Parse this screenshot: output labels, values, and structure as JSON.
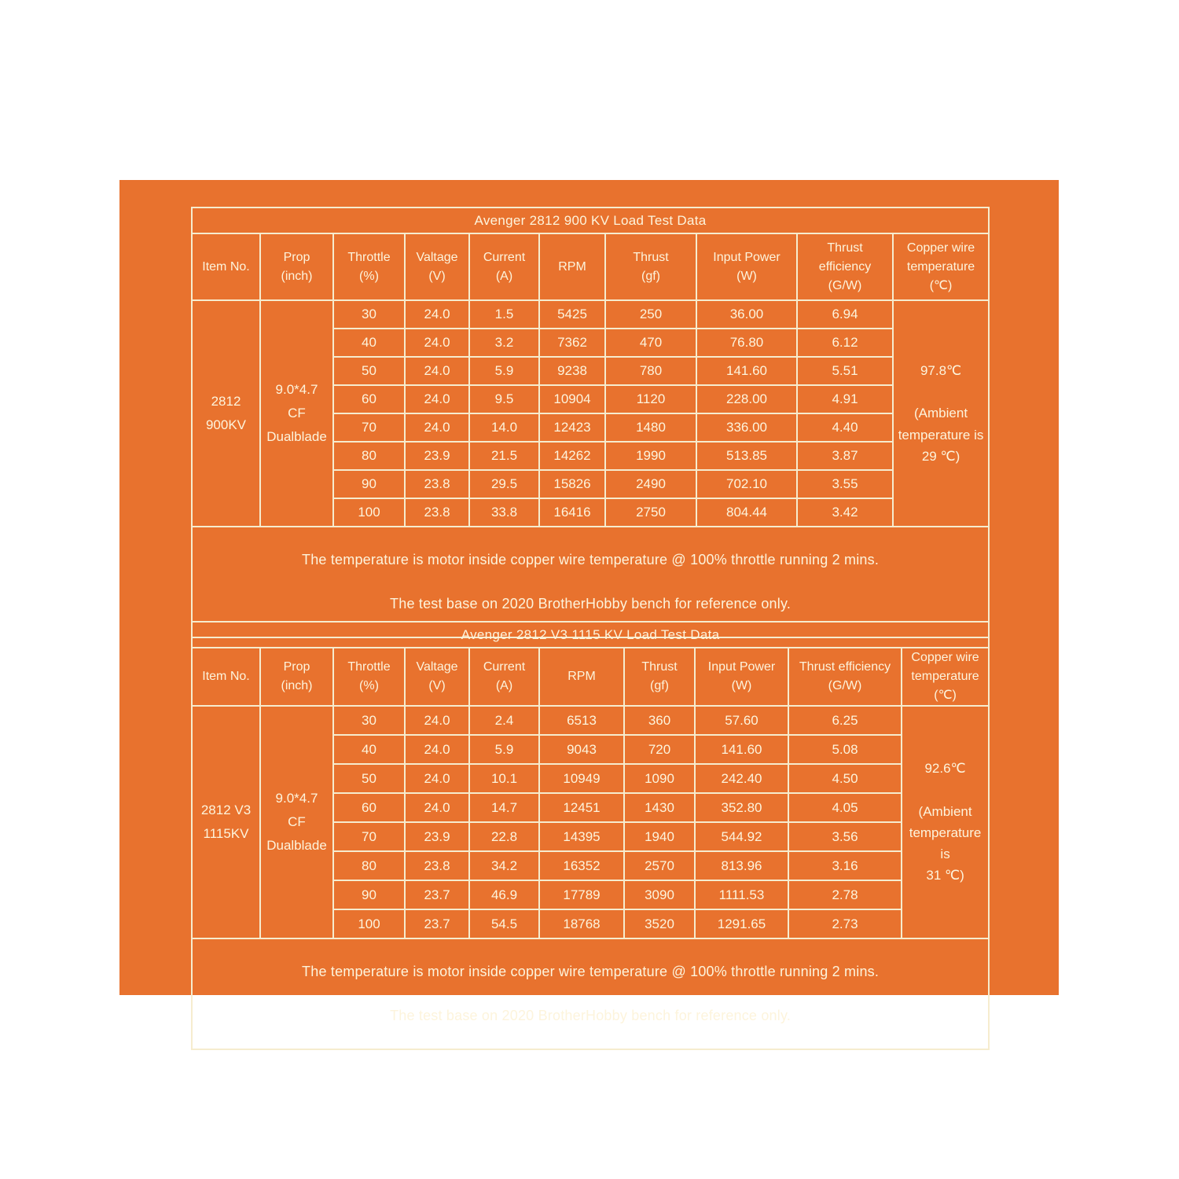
{
  "colors": {
    "page_background": "#ffffff",
    "panel_orange": "#e8722e",
    "text_cream": "#fdf4dc",
    "border_cream": "#f6ecce"
  },
  "tables": [
    {
      "title": "Avenger 2812 900 KV Load Test Data",
      "headers": [
        "Item No.",
        "Prop\n(inch)",
        "Throttle\n(%)",
        "Valtage\n(V)",
        "Current\n(A)",
        "RPM",
        "Thrust\n(gf)",
        "Input Power\n(W)",
        "Thrust\nefficiency\n(G/W)",
        "Copper wire\ntemperature\n(℃)"
      ],
      "item": "2812\n900KV",
      "prop": "9.0*4.7\nCF\nDualblade",
      "temperature": "97.8℃\n\n(Ambient\ntemperature is\n29 ℃)",
      "rows": [
        [
          "30",
          "24.0",
          "1.5",
          "5425",
          "250",
          "36.00",
          "6.94"
        ],
        [
          "40",
          "24.0",
          "3.2",
          "7362",
          "470",
          "76.80",
          "6.12"
        ],
        [
          "50",
          "24.0",
          "5.9",
          "9238",
          "780",
          "141.60",
          "5.51"
        ],
        [
          "60",
          "24.0",
          "9.5",
          "10904",
          "1120",
          "228.00",
          "4.91"
        ],
        [
          "70",
          "24.0",
          "14.0",
          "12423",
          "1480",
          "336.00",
          "4.40"
        ],
        [
          "80",
          "23.9",
          "21.5",
          "14262",
          "1990",
          "513.85",
          "3.87"
        ],
        [
          "90",
          "23.8",
          "29.5",
          "15826",
          "2490",
          "702.10",
          "3.55"
        ],
        [
          "100",
          "23.8",
          "33.8",
          "16416",
          "2750",
          "804.44",
          "3.42"
        ]
      ],
      "notes": [
        "The temperature is motor inside copper wire temperature @ 100% throttle running 2 mins.",
        "The test base on 2020 BrotherHobby bench  for reference only."
      ]
    },
    {
      "title": "Avenger 2812 V3 1115 KV Load Test Data",
      "headers": [
        "Item No.",
        "Prop\n(inch)",
        "Throttle\n(%)",
        "Valtage\n(V)",
        "Current\n(A)",
        "RPM",
        "Thrust\n(gf)",
        "Input Power\n(W)",
        "Thrust efficiency\n(G/W)",
        "Copper wire\ntemperature\n(℃)"
      ],
      "item": "2812 V3\n1115KV",
      "prop": "9.0*4.7\nCF\nDualblade",
      "temperature": "92.6℃\n\n(Ambient\ntemperature is\n31 ℃)",
      "rows": [
        [
          "30",
          "24.0",
          "2.4",
          "6513",
          "360",
          "57.60",
          "6.25"
        ],
        [
          "40",
          "24.0",
          "5.9",
          "9043",
          "720",
          "141.60",
          "5.08"
        ],
        [
          "50",
          "24.0",
          "10.1",
          "10949",
          "1090",
          "242.40",
          "4.50"
        ],
        [
          "60",
          "24.0",
          "14.7",
          "12451",
          "1430",
          "352.80",
          "4.05"
        ],
        [
          "70",
          "23.9",
          "22.8",
          "14395",
          "1940",
          "544.92",
          "3.56"
        ],
        [
          "80",
          "23.8",
          "34.2",
          "16352",
          "2570",
          "813.96",
          "3.16"
        ],
        [
          "90",
          "23.7",
          "46.9",
          "17789",
          "3090",
          "1111.53",
          "2.78"
        ],
        [
          "100",
          "23.7",
          "54.5",
          "18768",
          "3520",
          "1291.65",
          "2.73"
        ]
      ],
      "notes": [
        "The temperature is motor inside copper wire temperature @ 100% throttle running 2 mins.",
        "The test base on 2020 BrotherHobby bench  for reference only."
      ]
    }
  ]
}
